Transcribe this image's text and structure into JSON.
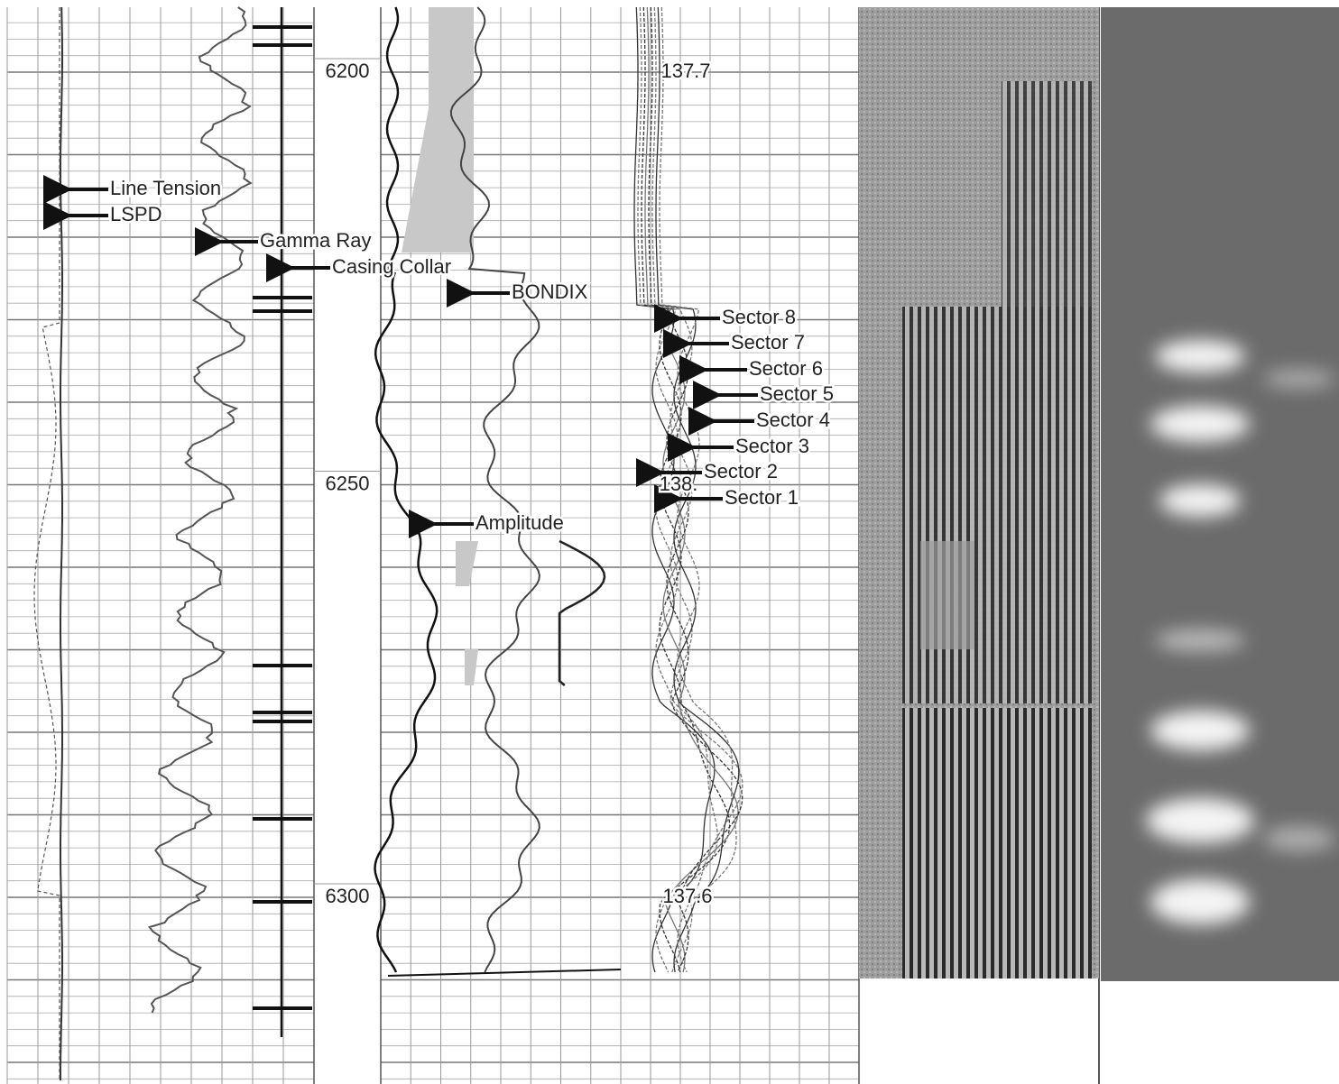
{
  "depth_labels": [
    6200,
    6250,
    6300
  ],
  "curve_labels": [
    "Line Tension",
    "LSPD",
    "Gamma Ray",
    "Casing Collar",
    "BONDIX",
    "Amplitude"
  ],
  "sector_labels": [
    "Sector 8",
    "Sector 7",
    "Sector 6",
    "Sector 5",
    "Sector 4",
    "Sector 3",
    "Sector 2",
    "Sector 1"
  ],
  "annotations": [
    "137.7",
    "138.",
    "137.6"
  ]
}
